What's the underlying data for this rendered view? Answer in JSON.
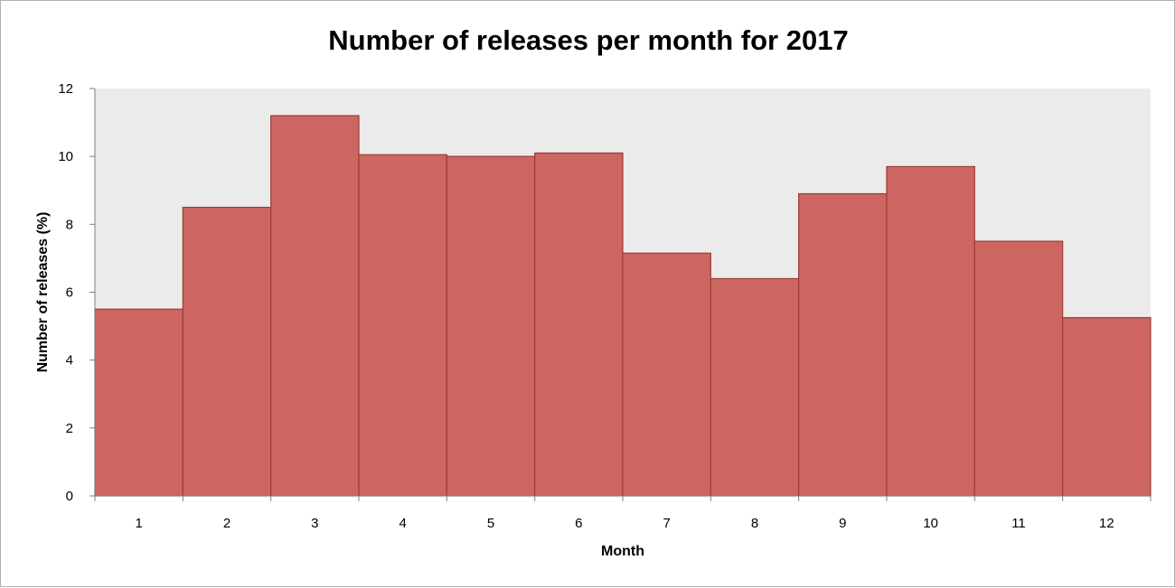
{
  "chart_data": {
    "type": "bar",
    "title": "Number of releases per month for 2017",
    "xlabel": "Month",
    "ylabel": "Number of releases (%)",
    "categories": [
      "1",
      "2",
      "3",
      "4",
      "5",
      "6",
      "7",
      "8",
      "9",
      "10",
      "11",
      "12"
    ],
    "values": [
      5.5,
      8.5,
      11.2,
      10.05,
      10.0,
      10.1,
      7.15,
      6.4,
      8.9,
      9.7,
      7.5,
      5.25
    ],
    "ylim": [
      0,
      12
    ],
    "yticks": [
      "0",
      "2",
      "4",
      "6",
      "8",
      "10",
      "12"
    ],
    "grid": false,
    "legend": "none",
    "colors": {
      "bar_fill": "#cd6660",
      "bar_edge": "#9c3b36",
      "plot_background": "#ebebeb",
      "axis": "#808080"
    }
  }
}
